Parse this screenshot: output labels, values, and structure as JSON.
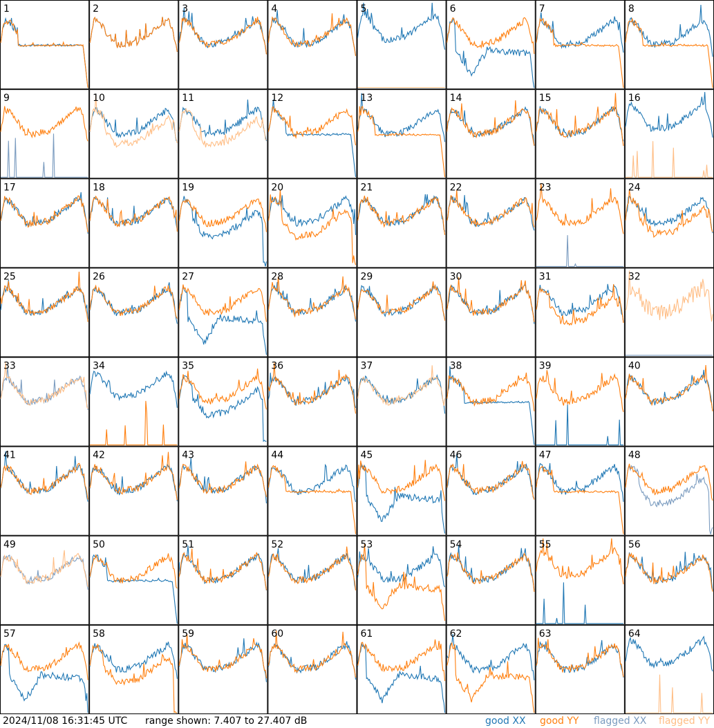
{
  "timestamp": "2024/11/08 16:31:45 UTC",
  "range_text": "range shown: 7.407 to 27.407 dB",
  "legend": {
    "good_xx": "good XX",
    "good_yy": "good YY",
    "flagged_xx": "flagged XX",
    "flagged_yy": "flagged YY"
  },
  "colors": {
    "good_xx": "#1f77b4",
    "good_yy": "#ff7f0e",
    "flagged_xx": "#7a9bbf",
    "flagged_yy": "#ffbe86",
    "grid": "#000000"
  },
  "chart_data": {
    "type": "line",
    "range_db": [
      7.407,
      27.407
    ],
    "rows": 8,
    "cols": 8,
    "tiles": [
      {
        "id": "1",
        "xx": "good",
        "yy": "good",
        "xx_shape": "dropout",
        "yy_shape": "dropout"
      },
      {
        "id": "2",
        "xx": "good",
        "yy": "good",
        "xx_shape": "normal",
        "yy_shape": "normal"
      },
      {
        "id": "3",
        "xx": "good",
        "yy": "good",
        "xx_shape": "normal",
        "yy_shape": "normal"
      },
      {
        "id": "4",
        "xx": "good",
        "yy": "good",
        "xx_shape": "normal",
        "yy_shape": "normal"
      },
      {
        "id": "5",
        "xx": "good",
        "yy": "flagged",
        "xx_shape": "high",
        "yy_shape": "flat"
      },
      {
        "id": "6",
        "xx": "good",
        "yy": "good",
        "xx_shape": "dip",
        "yy_shape": "normal"
      },
      {
        "id": "7",
        "xx": "good",
        "yy": "good",
        "xx_shape": "normal",
        "yy_shape": "dropout"
      },
      {
        "id": "8",
        "xx": "good",
        "yy": "good",
        "xx_shape": "normal",
        "yy_shape": "dropout"
      },
      {
        "id": "9",
        "xx": "flagged",
        "yy": "good",
        "xx_shape": "spikes",
        "yy_shape": "normal"
      },
      {
        "id": "10",
        "xx": "good",
        "yy": "flagged",
        "xx_shape": "normal",
        "yy_shape": "low"
      },
      {
        "id": "11",
        "xx": "good",
        "yy": "flagged",
        "xx_shape": "normal",
        "yy_shape": "low"
      },
      {
        "id": "12",
        "xx": "good",
        "yy": "good",
        "xx_shape": "dropout",
        "yy_shape": "normal"
      },
      {
        "id": "13",
        "xx": "good",
        "yy": "good",
        "xx_shape": "normal",
        "yy_shape": "dropout"
      },
      {
        "id": "14",
        "xx": "good",
        "yy": "good",
        "xx_shape": "normal",
        "yy_shape": "normal"
      },
      {
        "id": "15",
        "xx": "good",
        "yy": "good",
        "xx_shape": "normal",
        "yy_shape": "normal"
      },
      {
        "id": "16",
        "xx": "good",
        "yy": "flagged",
        "xx_shape": "high",
        "yy_shape": "spikes"
      },
      {
        "id": "17",
        "xx": "good",
        "yy": "good",
        "xx_shape": "normal",
        "yy_shape": "normal"
      },
      {
        "id": "18",
        "xx": "good",
        "yy": "good",
        "xx_shape": "normal",
        "yy_shape": "normal"
      },
      {
        "id": "19",
        "xx": "good",
        "yy": "good",
        "xx_shape": "lowdropout",
        "yy_shape": "normal"
      },
      {
        "id": "20",
        "xx": "good",
        "yy": "good",
        "xx_shape": "normal",
        "yy_shape": "lowdropout"
      },
      {
        "id": "21",
        "xx": "good",
        "yy": "good",
        "xx_shape": "normal",
        "yy_shape": "normal"
      },
      {
        "id": "22",
        "xx": "good",
        "yy": "good",
        "xx_shape": "normal",
        "yy_shape": "normal"
      },
      {
        "id": "23",
        "xx": "flagged",
        "yy": "good",
        "xx_shape": "spikes",
        "yy_shape": "normal"
      },
      {
        "id": "24",
        "xx": "good",
        "yy": "good",
        "xx_shape": "normal",
        "yy_shape": "low"
      },
      {
        "id": "25",
        "xx": "good",
        "yy": "good",
        "xx_shape": "normal",
        "yy_shape": "normal"
      },
      {
        "id": "26",
        "xx": "good",
        "yy": "good",
        "xx_shape": "normal",
        "yy_shape": "normal"
      },
      {
        "id": "27",
        "xx": "good",
        "yy": "good",
        "xx_shape": "dip",
        "yy_shape": "normal"
      },
      {
        "id": "28",
        "xx": "good",
        "yy": "good",
        "xx_shape": "normal",
        "yy_shape": "normal"
      },
      {
        "id": "29",
        "xx": "good",
        "yy": "good",
        "xx_shape": "normal",
        "yy_shape": "normal"
      },
      {
        "id": "30",
        "xx": "good",
        "yy": "good",
        "xx_shape": "normal",
        "yy_shape": "normal"
      },
      {
        "id": "31",
        "xx": "good",
        "yy": "good",
        "xx_shape": "normal",
        "yy_shape": "low"
      },
      {
        "id": "32",
        "xx": "flagged",
        "yy": "flagged",
        "xx_shape": "flat",
        "yy_shape": "noisy"
      },
      {
        "id": "33",
        "xx": "flagged",
        "yy": "flagged",
        "xx_shape": "normal",
        "yy_shape": "normal"
      },
      {
        "id": "34",
        "xx": "good",
        "yy": "good",
        "xx_shape": "high",
        "yy_shape": "spikes"
      },
      {
        "id": "35",
        "xx": "good",
        "yy": "good",
        "xx_shape": "lowdropout",
        "yy_shape": "normal"
      },
      {
        "id": "36",
        "xx": "good",
        "yy": "good",
        "xx_shape": "normal",
        "yy_shape": "normal"
      },
      {
        "id": "37",
        "xx": "good",
        "yy": "flagged",
        "xx_shape": "normal",
        "yy_shape": "normal"
      },
      {
        "id": "38",
        "xx": "good",
        "yy": "good",
        "xx_shape": "dropout",
        "yy_shape": "normal"
      },
      {
        "id": "39",
        "xx": "good",
        "yy": "good",
        "xx_shape": "spikes",
        "yy_shape": "normal"
      },
      {
        "id": "40",
        "xx": "good",
        "yy": "good",
        "xx_shape": "normal",
        "yy_shape": "normal"
      },
      {
        "id": "41",
        "xx": "good",
        "yy": "good",
        "xx_shape": "normal",
        "yy_shape": "normal"
      },
      {
        "id": "42",
        "xx": "good",
        "yy": "good",
        "xx_shape": "normal",
        "yy_shape": "normal"
      },
      {
        "id": "43",
        "xx": "good",
        "yy": "good",
        "xx_shape": "normal",
        "yy_shape": "normal"
      },
      {
        "id": "44",
        "xx": "good",
        "yy": "good",
        "xx_shape": "normal",
        "yy_shape": "dropout"
      },
      {
        "id": "45",
        "xx": "good",
        "yy": "good",
        "xx_shape": "dip",
        "yy_shape": "normal"
      },
      {
        "id": "46",
        "xx": "good",
        "yy": "good",
        "xx_shape": "normal",
        "yy_shape": "normal"
      },
      {
        "id": "47",
        "xx": "good",
        "yy": "good",
        "xx_shape": "normal",
        "yy_shape": "dropout"
      },
      {
        "id": "48",
        "xx": "flagged",
        "yy": "good",
        "xx_shape": "lowdropout",
        "yy_shape": "normal"
      },
      {
        "id": "49",
        "xx": "flagged",
        "yy": "flagged",
        "xx_shape": "normal",
        "yy_shape": "normal"
      },
      {
        "id": "50",
        "xx": "good",
        "yy": "good",
        "xx_shape": "dropout",
        "yy_shape": "normal"
      },
      {
        "id": "51",
        "xx": "good",
        "yy": "good",
        "xx_shape": "normal",
        "yy_shape": "normal"
      },
      {
        "id": "52",
        "xx": "good",
        "yy": "good",
        "xx_shape": "normal",
        "yy_shape": "normal"
      },
      {
        "id": "53",
        "xx": "good",
        "yy": "good",
        "xx_shape": "normal",
        "yy_shape": "dip"
      },
      {
        "id": "54",
        "xx": "good",
        "yy": "good",
        "xx_shape": "normal",
        "yy_shape": "normal"
      },
      {
        "id": "55",
        "xx": "good",
        "yy": "good",
        "xx_shape": "spikes",
        "yy_shape": "high"
      },
      {
        "id": "56",
        "xx": "good",
        "yy": "good",
        "xx_shape": "normal",
        "yy_shape": "normal"
      },
      {
        "id": "57",
        "xx": "good",
        "yy": "good",
        "xx_shape": "dip",
        "yy_shape": "normal"
      },
      {
        "id": "58",
        "xx": "good",
        "yy": "good",
        "xx_shape": "normal",
        "yy_shape": "lowdropout"
      },
      {
        "id": "59",
        "xx": "good",
        "yy": "good",
        "xx_shape": "normal",
        "yy_shape": "normal"
      },
      {
        "id": "60",
        "xx": "good",
        "yy": "good",
        "xx_shape": "normal",
        "yy_shape": "normal"
      },
      {
        "id": "61",
        "xx": "good",
        "yy": "good",
        "xx_shape": "dip",
        "yy_shape": "normal"
      },
      {
        "id": "62",
        "xx": "good",
        "yy": "good",
        "xx_shape": "normal",
        "yy_shape": "dip"
      },
      {
        "id": "63",
        "xx": "good",
        "yy": "good",
        "xx_shape": "normal",
        "yy_shape": "normal"
      },
      {
        "id": "64",
        "xx": "good",
        "yy": "flagged",
        "xx_shape": "high",
        "yy_shape": "spikes"
      }
    ]
  }
}
